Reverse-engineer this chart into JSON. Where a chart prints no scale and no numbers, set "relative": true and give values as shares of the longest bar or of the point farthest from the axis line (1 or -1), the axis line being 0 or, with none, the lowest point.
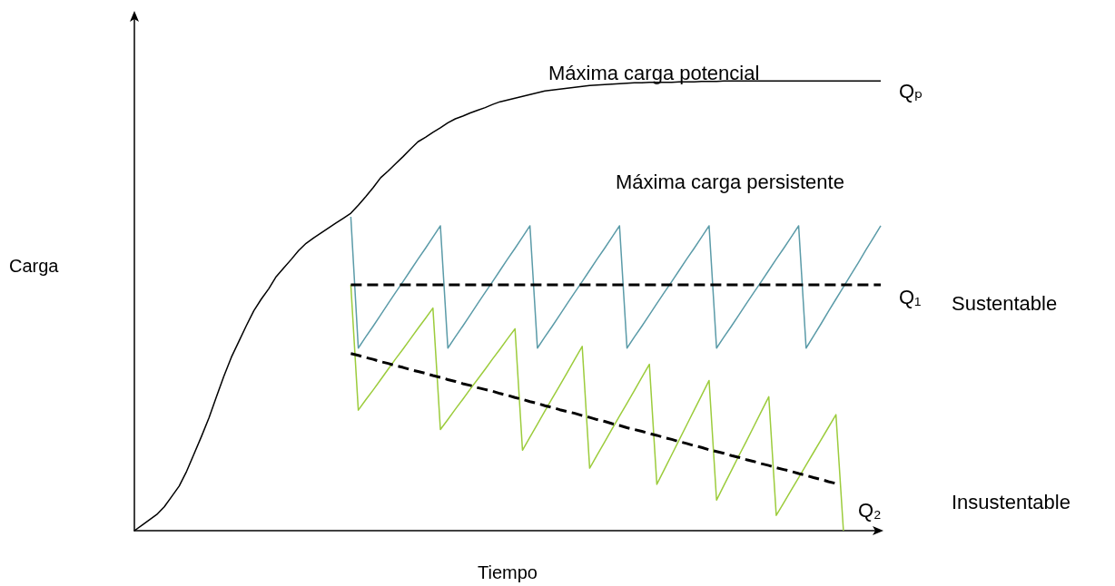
{
  "chart_data": {
    "type": "line",
    "relative": true,
    "xlabel": "Tiempo",
    "ylabel": "Carga",
    "ylim": [
      0,
      1.15
    ],
    "grid": false,
    "marker": "none",
    "categories": [
      null,
      null,
      null,
      null,
      null,
      null,
      null,
      null,
      null,
      null,
      null,
      null,
      null,
      null,
      null,
      null,
      null,
      null,
      null,
      null,
      null,
      null,
      null,
      null,
      null,
      null,
      null,
      null,
      null,
      null,
      null,
      null,
      null,
      null,
      null,
      null,
      null,
      null,
      null,
      null,
      null,
      null,
      null,
      null,
      null,
      null,
      null,
      null,
      null,
      null,
      null,
      null,
      null,
      null,
      null,
      null,
      null,
      null,
      null,
      null,
      null,
      null,
      null,
      null,
      null,
      null,
      null,
      null,
      null,
      null,
      null,
      null,
      null,
      null,
      null,
      null,
      null,
      null,
      null,
      null,
      null,
      null,
      null,
      null,
      null,
      null,
      null,
      null,
      null,
      null,
      null,
      null,
      null,
      null,
      null,
      null,
      null,
      null,
      null,
      null,
      null
    ],
    "series": [
      {
        "color": "#000000",
        "values": [
          0,
          0.012,
          0.024,
          0.036,
          0.053,
          0.076,
          0.099,
          0.132,
          0.171,
          0.21,
          0.251,
          0.298,
          0.344,
          0.386,
          0.421,
          0.456,
          0.489,
          0.515,
          0.538,
          0.565,
          0.584,
          0.603,
          0.623,
          0.639,
          0.651,
          0.662,
          0.673,
          0.684,
          0.695,
          0.706,
          0.724,
          0.743,
          0.763,
          0.785,
          0.8,
          0.816,
          0.832,
          0.849,
          0.865,
          0.875,
          0.886,
          0.896,
          0.907,
          0.916,
          0.922,
          0.929,
          0.935,
          0.941,
          0.948,
          0.954,
          0.958,
          0.962,
          0.966,
          0.97,
          0.974,
          0.978,
          0.98,
          0.982,
          0.984,
          0.986,
          0.988,
          0.99,
          0.991,
          0.992,
          0.993,
          0.994,
          0.995,
          0.996,
          0.996,
          0.997,
          0.997,
          0.997,
          0.997,
          0.998,
          0.998,
          0.998,
          0.999,
          0.999,
          0.999,
          1,
          1,
          1,
          1,
          1,
          1,
          1,
          1,
          1,
          1,
          1,
          1,
          1,
          1,
          1,
          1,
          1,
          1,
          1,
          1,
          1,
          1
        ]
      },
      {
        "color": "#5b9ba8",
        "values": [
          null,
          null,
          null,
          null,
          null,
          null,
          null,
          null,
          null,
          null,
          null,
          null,
          null,
          null,
          null,
          null,
          null,
          null,
          null,
          null,
          null,
          null,
          null,
          null,
          null,
          null,
          null,
          null,
          null,
          0.698,
          0.406,
          0.431,
          0.455,
          0.48,
          0.505,
          0.53,
          0.554,
          0.579,
          0.604,
          0.628,
          0.653,
          0.678,
          0.406,
          0.431,
          0.455,
          0.48,
          0.505,
          0.53,
          0.554,
          0.579,
          0.604,
          0.628,
          0.653,
          0.678,
          0.406,
          0.431,
          0.455,
          0.48,
          0.505,
          0.53,
          0.554,
          0.579,
          0.604,
          0.628,
          0.653,
          0.678,
          0.406,
          0.431,
          0.455,
          0.48,
          0.505,
          0.53,
          0.554,
          0.579,
          0.604,
          0.628,
          0.653,
          0.678,
          0.406,
          0.431,
          0.455,
          0.48,
          0.505,
          0.53,
          0.554,
          0.579,
          0.604,
          0.628,
          0.653,
          0.678,
          0.406,
          0.433,
          0.46,
          0.488,
          0.515,
          0.542,
          0.569,
          0.596,
          0.624,
          0.651,
          0.678
        ]
      },
      {
        "color": "#9ccc3c",
        "values": [
          null,
          null,
          null,
          null,
          null,
          null,
          null,
          null,
          null,
          null,
          null,
          null,
          null,
          null,
          null,
          null,
          null,
          null,
          null,
          null,
          null,
          null,
          null,
          null,
          null,
          null,
          null,
          null,
          null,
          0.547,
          0.268,
          0.291,
          0.313,
          0.336,
          0.359,
          0.382,
          0.404,
          0.427,
          0.45,
          0.472,
          0.495,
          0.225,
          0.247,
          0.27,
          0.292,
          0.315,
          0.337,
          0.359,
          0.382,
          0.404,
          0.427,
          0.449,
          0.179,
          0.208,
          0.237,
          0.266,
          0.295,
          0.323,
          0.352,
          0.381,
          0.41,
          0.139,
          0.168,
          0.197,
          0.226,
          0.255,
          0.283,
          0.312,
          0.341,
          0.37,
          0.103,
          0.136,
          0.169,
          0.202,
          0.235,
          0.268,
          0.301,
          0.334,
          0.068,
          0.101,
          0.134,
          0.167,
          0.199,
          0.232,
          0.265,
          0.298,
          0.034,
          0.062,
          0.09,
          0.118,
          0.146,
          0.174,
          0.202,
          0.23,
          0.258,
          0,
          null,
          null,
          null,
          null,
          null
        ]
      },
      {
        "color": "#000000",
        "line_style": "dashed",
        "values": [
          null,
          null,
          null,
          null,
          null,
          null,
          null,
          null,
          null,
          null,
          null,
          null,
          null,
          null,
          null,
          null,
          null,
          null,
          null,
          null,
          null,
          null,
          null,
          null,
          null,
          null,
          null,
          null,
          null,
          0.547,
          0.547,
          0.547,
          0.547,
          0.547,
          0.547,
          0.547,
          0.547,
          0.547,
          0.547,
          0.547,
          0.547,
          0.547,
          0.547,
          0.547,
          0.547,
          0.547,
          0.547,
          0.547,
          0.547,
          0.547,
          0.547,
          0.547,
          0.547,
          0.547,
          0.547,
          0.547,
          0.547,
          0.547,
          0.547,
          0.547,
          0.547,
          0.547,
          0.547,
          0.547,
          0.547,
          0.547,
          0.547,
          0.547,
          0.547,
          0.547,
          0.547,
          0.547,
          0.547,
          0.547,
          0.547,
          0.547,
          0.547,
          0.547,
          0.547,
          0.547,
          0.547,
          0.547,
          0.547,
          0.547,
          0.547,
          0.547,
          0.547,
          0.547,
          0.547,
          0.547,
          0.547,
          0.547,
          0.547,
          0.547,
          0.547,
          0.547,
          0.547,
          0.547,
          0.547,
          0.547,
          0.547
        ]
      },
      {
        "color": "#000000",
        "line_style": "dashed",
        "values": [
          null,
          null,
          null,
          null,
          null,
          null,
          null,
          null,
          null,
          null,
          null,
          null,
          null,
          null,
          null,
          null,
          null,
          null,
          null,
          null,
          null,
          null,
          null,
          null,
          null,
          null,
          null,
          null,
          null,
          0.394,
          0.39,
          0.385,
          0.381,
          0.376,
          0.372,
          0.367,
          0.363,
          0.358,
          0.354,
          0.35,
          0.345,
          0.341,
          0.336,
          0.332,
          0.327,
          0.323,
          0.318,
          0.314,
          0.31,
          0.305,
          0.301,
          0.296,
          0.292,
          0.287,
          0.283,
          0.278,
          0.274,
          0.269,
          0.265,
          0.261,
          0.256,
          0.252,
          0.247,
          0.243,
          0.238,
          0.234,
          0.229,
          0.225,
          0.221,
          0.216,
          0.212,
          0.207,
          0.203,
          0.198,
          0.194,
          0.189,
          0.185,
          0.18,
          0.176,
          0.172,
          0.167,
          0.163,
          0.158,
          0.154,
          0.149,
          0.145,
          0.14,
          0.136,
          0.132,
          0.127,
          0.123,
          0.118,
          0.114,
          0.109,
          0.105,
          null,
          null,
          null,
          null,
          null,
          null
        ]
      }
    ],
    "annotations": [
      "Máxima carga potencial",
      "Qₚ",
      "Máxima carga persistente",
      "Q₁",
      "Sustentable",
      "Q₂",
      "Insustentable"
    ]
  }
}
